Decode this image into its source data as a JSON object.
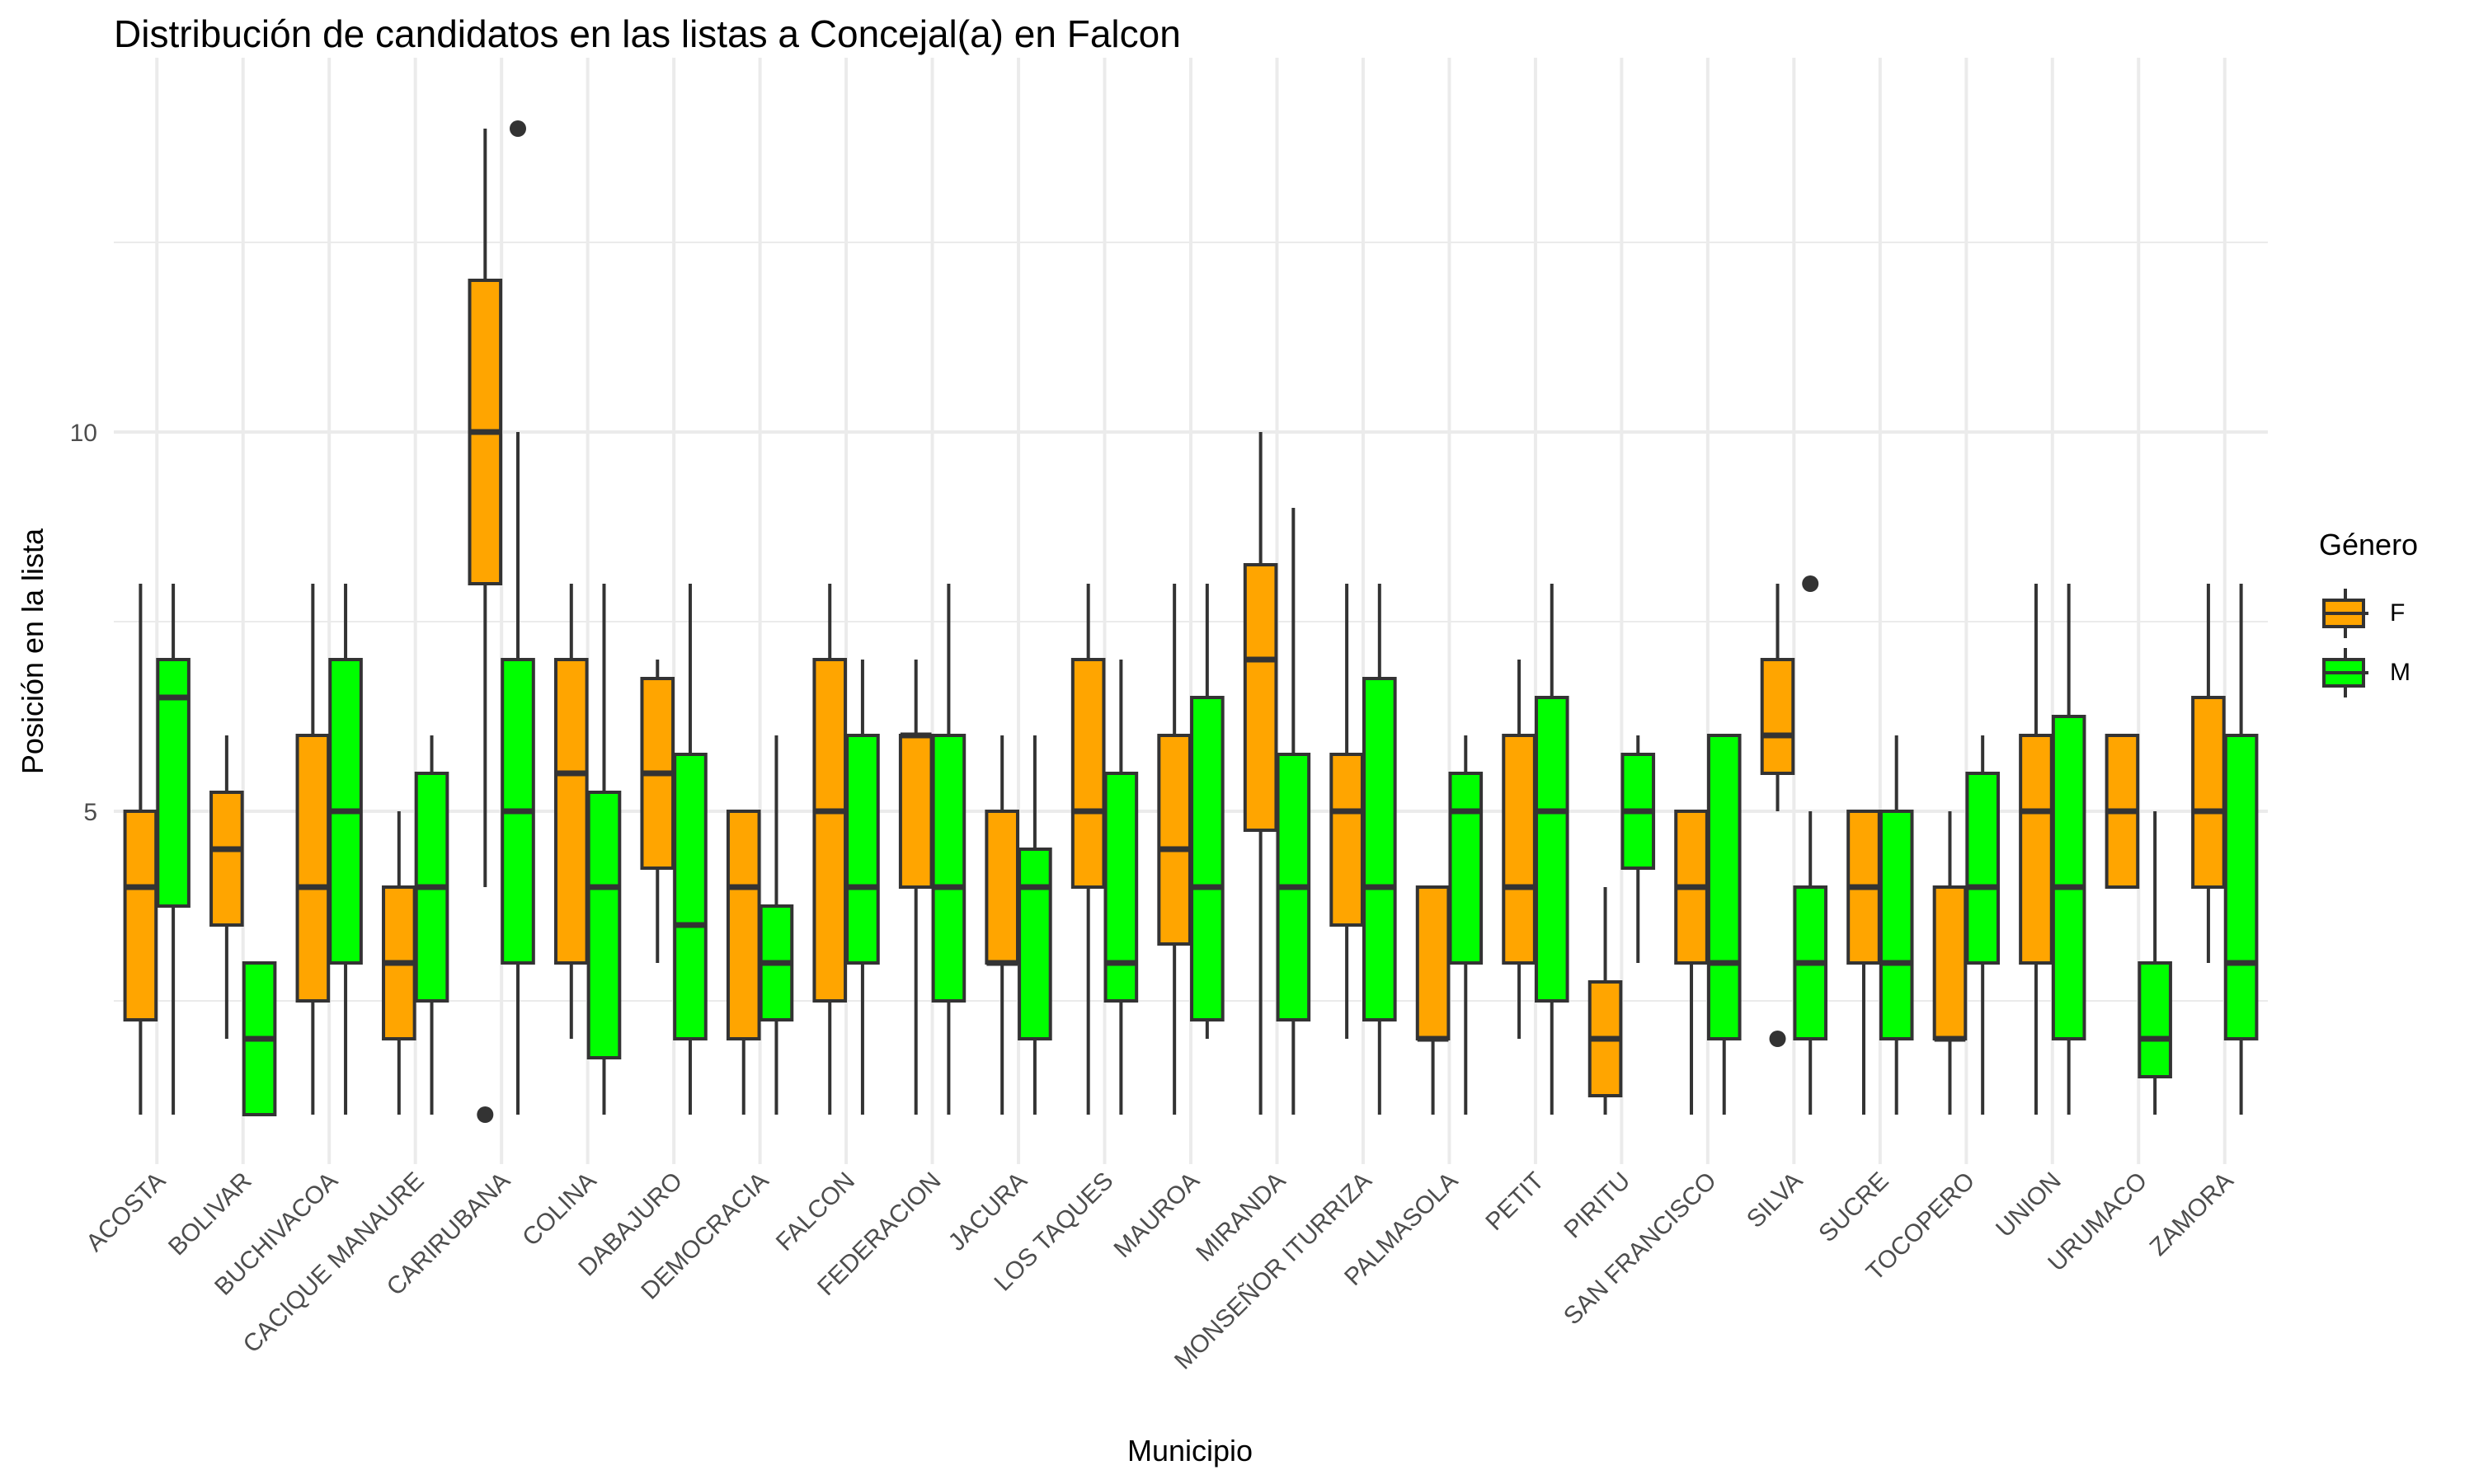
{
  "chart_data": {
    "type": "boxplot",
    "title": "Distribución de candidatos en las listas a Concejal(a) en Falcon",
    "xlabel": "Municipio",
    "ylabel": "Posición en la lista",
    "ylim": [
      0.5,
      14.5
    ],
    "yticks": [
      5,
      10
    ],
    "grid": true,
    "legend": {
      "title": "Género",
      "position": "right",
      "entries": [
        "F",
        "M"
      ]
    },
    "colors": {
      "F": "#ffa500",
      "M": "#00ff00",
      "outline": "#333333",
      "grid": "#ebebeb"
    },
    "categories": [
      "ACOSTA",
      "BOLIVAR",
      "BUCHIVACOA",
      "CACIQUE MANAURE",
      "CARIRUBANA",
      "COLINA",
      "DABAJURO",
      "DEMOCRACIA",
      "FALCON",
      "FEDERACION",
      "JACURA",
      "LOS TAQUES",
      "MAUROA",
      "MIRANDA",
      "MONSEÑOR ITURRIZA",
      "PALMASOLA",
      "PETIT",
      "PIRITU",
      "SAN FRANCISCO",
      "SILVA",
      "SUCRE",
      "TOCOPERO",
      "UNION",
      "URUMACO",
      "ZAMORA"
    ],
    "series": [
      {
        "name": "F",
        "boxes": [
          {
            "min": 1,
            "q1": 2.25,
            "median": 4,
            "q3": 5,
            "max": 8,
            "outliers": []
          },
          {
            "min": 2,
            "q1": 3.5,
            "median": 4.5,
            "q3": 5.25,
            "max": 6,
            "outliers": []
          },
          {
            "min": 1,
            "q1": 2.5,
            "median": 4,
            "q3": 6,
            "max": 8,
            "outliers": []
          },
          {
            "min": 1,
            "q1": 2,
            "median": 3,
            "q3": 4,
            "max": 5,
            "outliers": []
          },
          {
            "min": 4,
            "q1": 8,
            "median": 10,
            "q3": 12,
            "max": 14,
            "outliers": [
              1
            ]
          },
          {
            "min": 2,
            "q1": 3,
            "median": 5.5,
            "q3": 7,
            "max": 8,
            "outliers": []
          },
          {
            "min": 3,
            "q1": 4.25,
            "median": 5.5,
            "q3": 6.75,
            "max": 7,
            "outliers": []
          },
          {
            "min": 1,
            "q1": 2,
            "median": 4,
            "q3": 5,
            "max": 5,
            "outliers": []
          },
          {
            "min": 1,
            "q1": 2.5,
            "median": 5,
            "q3": 7,
            "max": 8,
            "outliers": []
          },
          {
            "min": 1,
            "q1": 4,
            "median": 6,
            "q3": 6,
            "max": 7,
            "outliers": []
          },
          {
            "min": 1,
            "q1": 3,
            "median": 3,
            "q3": 5,
            "max": 6,
            "outliers": []
          },
          {
            "min": 1,
            "q1": 4,
            "median": 5,
            "q3": 7,
            "max": 8,
            "outliers": []
          },
          {
            "min": 1,
            "q1": 3.25,
            "median": 4.5,
            "q3": 6,
            "max": 8,
            "outliers": []
          },
          {
            "min": 1,
            "q1": 4.75,
            "median": 7,
            "q3": 8.25,
            "max": 10,
            "outliers": []
          },
          {
            "min": 2,
            "q1": 3.5,
            "median": 5,
            "q3": 5.75,
            "max": 8,
            "outliers": []
          },
          {
            "min": 1,
            "q1": 2,
            "median": 2,
            "q3": 4,
            "max": 4,
            "outliers": []
          },
          {
            "min": 2,
            "q1": 3,
            "median": 4,
            "q3": 6,
            "max": 7,
            "outliers": []
          },
          {
            "min": 1,
            "q1": 1.25,
            "median": 2,
            "q3": 2.75,
            "max": 4,
            "outliers": []
          },
          {
            "min": 1,
            "q1": 3,
            "median": 4,
            "q3": 5,
            "max": 5,
            "outliers": []
          },
          {
            "min": 5,
            "q1": 5.5,
            "median": 6,
            "q3": 7,
            "max": 8,
            "outliers": [
              2
            ]
          },
          {
            "min": 1,
            "q1": 3,
            "median": 4,
            "q3": 5,
            "max": 5,
            "outliers": []
          },
          {
            "min": 1,
            "q1": 2,
            "median": 2,
            "q3": 4,
            "max": 5,
            "outliers": []
          },
          {
            "min": 1,
            "q1": 3,
            "median": 5,
            "q3": 6,
            "max": 8,
            "outliers": []
          },
          {
            "min": 4,
            "q1": 4,
            "median": 5,
            "q3": 6,
            "max": 6,
            "outliers": []
          },
          {
            "min": 3,
            "q1": 4,
            "median": 5,
            "q3": 6.5,
            "max": 8,
            "outliers": []
          }
        ]
      },
      {
        "name": "M",
        "boxes": [
          {
            "min": 1,
            "q1": 3.75,
            "median": 6.5,
            "q3": 7,
            "max": 8,
            "outliers": []
          },
          {
            "min": 1,
            "q1": 1,
            "median": 2,
            "q3": 3,
            "max": 3,
            "outliers": []
          },
          {
            "min": 1,
            "q1": 3,
            "median": 5,
            "q3": 7,
            "max": 8,
            "outliers": []
          },
          {
            "min": 1,
            "q1": 2.5,
            "median": 4,
            "q3": 5.5,
            "max": 6,
            "outliers": []
          },
          {
            "min": 1,
            "q1": 3,
            "median": 5,
            "q3": 7,
            "max": 10,
            "outliers": [
              14
            ]
          },
          {
            "min": 1,
            "q1": 1.75,
            "median": 4,
            "q3": 5.25,
            "max": 8,
            "outliers": []
          },
          {
            "min": 1,
            "q1": 2,
            "median": 3.5,
            "q3": 5.75,
            "max": 8,
            "outliers": []
          },
          {
            "min": 1,
            "q1": 2.25,
            "median": 3,
            "q3": 3.75,
            "max": 6,
            "outliers": []
          },
          {
            "min": 1,
            "q1": 3,
            "median": 4,
            "q3": 6,
            "max": 7,
            "outliers": []
          },
          {
            "min": 1,
            "q1": 2.5,
            "median": 4,
            "q3": 6,
            "max": 8,
            "outliers": []
          },
          {
            "min": 1,
            "q1": 2,
            "median": 4,
            "q3": 4.5,
            "max": 6,
            "outliers": []
          },
          {
            "min": 1,
            "q1": 2.5,
            "median": 3,
            "q3": 5.5,
            "max": 7,
            "outliers": []
          },
          {
            "min": 2,
            "q1": 2.25,
            "median": 4,
            "q3": 6.5,
            "max": 8,
            "outliers": []
          },
          {
            "min": 1,
            "q1": 2.25,
            "median": 4,
            "q3": 5.75,
            "max": 9,
            "outliers": []
          },
          {
            "min": 1,
            "q1": 2.25,
            "median": 4,
            "q3": 6.75,
            "max": 8,
            "outliers": []
          },
          {
            "min": 1,
            "q1": 3,
            "median": 5,
            "q3": 5.5,
            "max": 6,
            "outliers": []
          },
          {
            "min": 1,
            "q1": 2.5,
            "median": 5,
            "q3": 6.5,
            "max": 8,
            "outliers": []
          },
          {
            "min": 3,
            "q1": 4.25,
            "median": 5,
            "q3": 5.75,
            "max": 6,
            "outliers": []
          },
          {
            "min": 1,
            "q1": 2,
            "median": 3,
            "q3": 6,
            "max": 6,
            "outliers": []
          },
          {
            "min": 1,
            "q1": 2,
            "median": 3,
            "q3": 4,
            "max": 5,
            "outliers": [
              8
            ]
          },
          {
            "min": 1,
            "q1": 2,
            "median": 3,
            "q3": 5,
            "max": 6,
            "outliers": []
          },
          {
            "min": 1,
            "q1": 3,
            "median": 4,
            "q3": 5.5,
            "max": 6,
            "outliers": []
          },
          {
            "min": 1,
            "q1": 2,
            "median": 4,
            "q3": 6.25,
            "max": 8,
            "outliers": []
          },
          {
            "min": 1,
            "q1": 1.5,
            "median": 2,
            "q3": 3,
            "max": 5,
            "outliers": []
          },
          {
            "min": 1,
            "q1": 2,
            "median": 3,
            "q3": 6,
            "max": 8,
            "outliers": []
          }
        ]
      }
    ]
  }
}
